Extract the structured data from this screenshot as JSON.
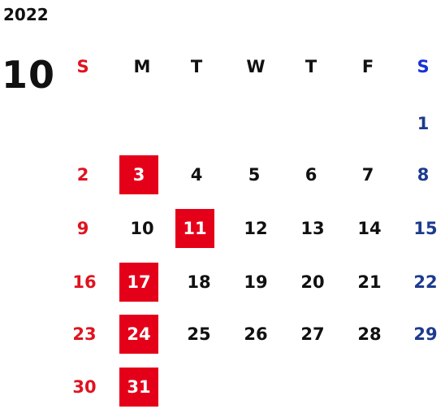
{
  "calendar": {
    "year": "2022",
    "month": "10",
    "weekdays": [
      "S",
      "M",
      "T",
      "W",
      "T",
      "F",
      "S"
    ],
    "weeks": [
      [
        "",
        "",
        "",
        "",
        "",
        "",
        "1"
      ],
      [
        "2",
        "3",
        "4",
        "5",
        "6",
        "7",
        "8"
      ],
      [
        "9",
        "10",
        "11",
        "12",
        "13",
        "14",
        "15"
      ],
      [
        "16",
        "17",
        "18",
        "19",
        "20",
        "21",
        "22"
      ],
      [
        "23",
        "24",
        "25",
        "26",
        "27",
        "28",
        "29"
      ],
      [
        "30",
        "31",
        "",
        "",
        "",
        "",
        ""
      ]
    ],
    "highlighted_days": [
      "3",
      "11",
      "17",
      "24",
      "31"
    ]
  },
  "colors": {
    "sunday": "#e0131f",
    "saturday": "#1c3b8f",
    "saturday_header": "#1733d6",
    "weekday": "#111111",
    "highlight_bg": "#e50019",
    "highlight_text": "#ffffff"
  }
}
